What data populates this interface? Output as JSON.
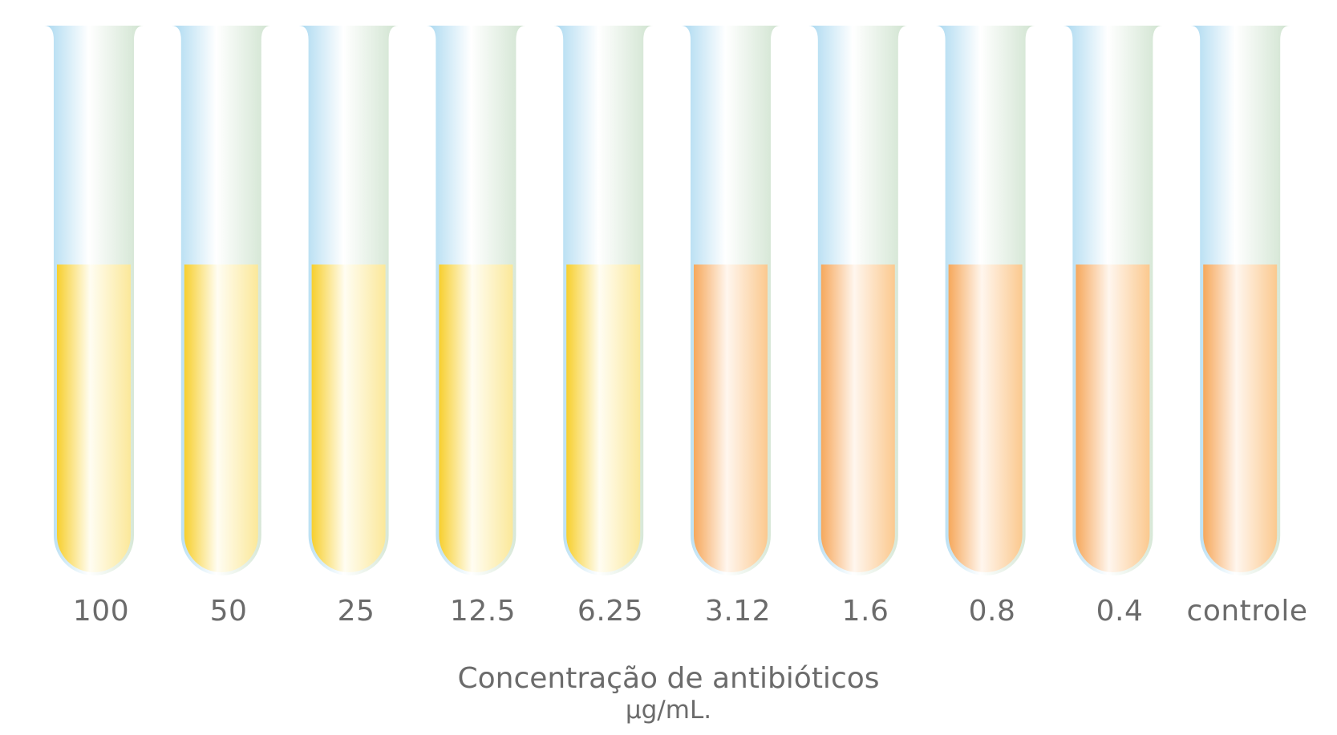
{
  "tubes": [
    {
      "label": "100",
      "liquid": "yellow"
    },
    {
      "label": "50",
      "liquid": "yellow"
    },
    {
      "label": "25",
      "liquid": "yellow"
    },
    {
      "label": "12.5",
      "liquid": "yellow"
    },
    {
      "label": "6.25",
      "liquid": "yellow"
    },
    {
      "label": "3.12",
      "liquid": "orange"
    },
    {
      "label": "1.6",
      "liquid": "orange"
    },
    {
      "label": "0.8",
      "liquid": "orange"
    },
    {
      "label": "0.4",
      "liquid": "orange"
    },
    {
      "label": "controle",
      "liquid": "orange"
    }
  ],
  "caption": {
    "line1": "Concentração de antibióticos",
    "line2": "µg/mL."
  },
  "colors": {
    "glass_blue": "#a9d8f0",
    "glass_white": "#ffffff",
    "glass_green": "#cfe3cf",
    "yellow_dark": "#f7cf2e",
    "yellow_light": "#fbe89a",
    "orange_dark": "#f6a85c",
    "orange_light": "#fbc98f",
    "text": "#6b6b6b"
  }
}
